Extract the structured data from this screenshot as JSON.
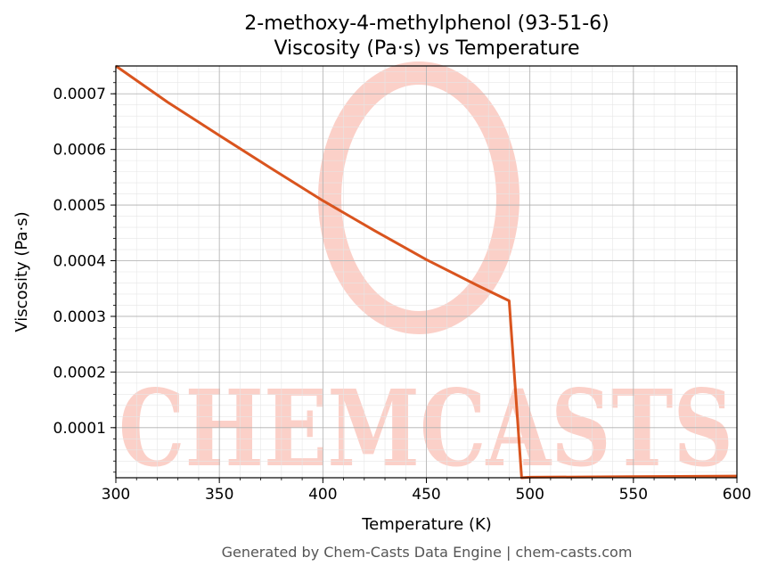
{
  "chart_data": {
    "type": "line",
    "title": "2-methoxy-4-methylphenol (93-51-6)",
    "subtitle": "Viscosity (Pa·s) vs Temperature",
    "xlabel": "Temperature (K)",
    "ylabel": "Viscosity (Pa·s)",
    "xlim": [
      300,
      600
    ],
    "ylim": [
      1e-05,
      0.00075
    ],
    "xticks": [
      300,
      350,
      400,
      450,
      500,
      550,
      600
    ],
    "xtick_labels": [
      "300",
      "350",
      "400",
      "450",
      "500",
      "550",
      "600"
    ],
    "yticks": [
      0.0001,
      0.0002,
      0.0003,
      0.0004,
      0.0005,
      0.0006,
      0.0007
    ],
    "ytick_labels": [
      "0.0001",
      "0.0002",
      "0.0003",
      "0.0004",
      "0.0005",
      "0.0006",
      "0.0007"
    ],
    "grid": true,
    "series": [
      {
        "color": "#d9541e",
        "x": [
          300,
          325,
          350,
          375,
          400,
          425,
          450,
          475,
          490,
          496,
          500,
          550,
          600
        ],
        "y": [
          0.00075,
          0.000685,
          0.000625,
          0.000566,
          0.000508,
          0.000454,
          0.000402,
          0.000355,
          0.000328,
          1e-05,
          1.1e-05,
          1.2e-05,
          1.3e-05
        ]
      }
    ]
  },
  "watermark": {
    "text": "CHEMCASTS",
    "color": "#fbd0c8"
  },
  "footer": "Generated by Chem-Casts Data Engine | chem-casts.com"
}
